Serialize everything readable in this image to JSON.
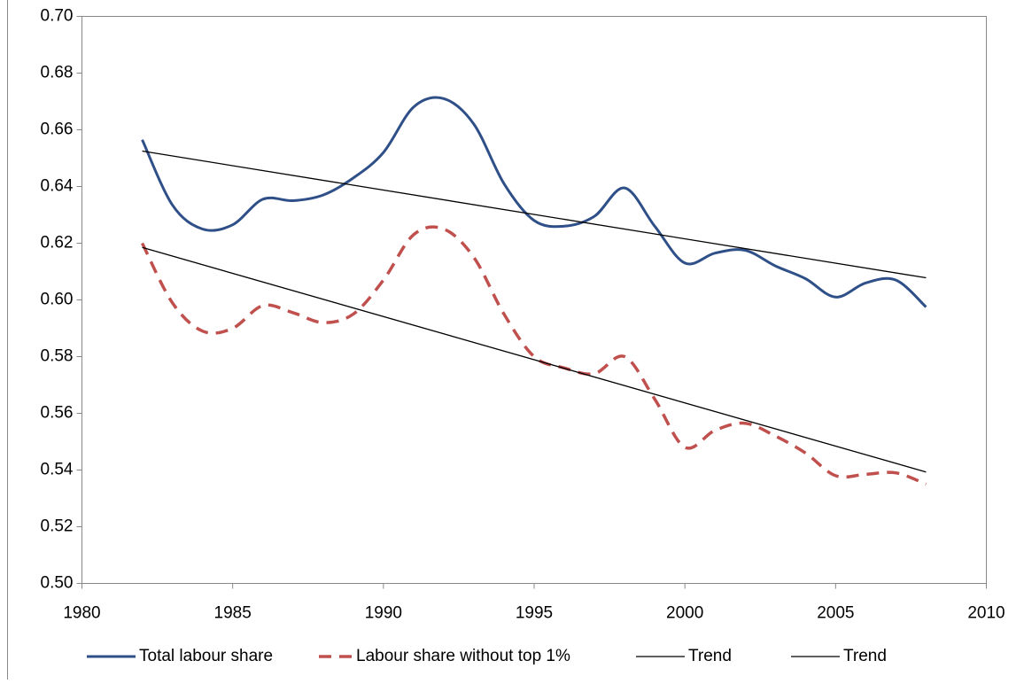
{
  "chart_data": {
    "type": "line",
    "x": [
      1982,
      1983,
      1984,
      1985,
      1986,
      1987,
      1988,
      1989,
      1990,
      1991,
      1992,
      1993,
      1994,
      1995,
      1996,
      1997,
      1998,
      1999,
      2000,
      2001,
      2002,
      2003,
      2004,
      2005,
      2006,
      2007,
      2008
    ],
    "series": [
      {
        "name": "Total labour share",
        "color": "#2e4f87",
        "dash": "solid",
        "width": 3,
        "values": [
          0.6565,
          0.6335,
          0.625,
          0.6265,
          0.6355,
          0.635,
          0.637,
          0.643,
          0.652,
          0.668,
          0.671,
          0.662,
          0.641,
          0.628,
          0.626,
          0.6295,
          0.6395,
          0.626,
          0.613,
          0.6165,
          0.6175,
          0.612,
          0.6075,
          0.601,
          0.606,
          0.607,
          0.5975
        ]
      },
      {
        "name": "Labour share without top 1%",
        "color": "#c0504d",
        "dash": "dashed",
        "width": 3.5,
        "values": [
          0.62,
          0.599,
          0.589,
          0.59,
          0.598,
          0.5955,
          0.592,
          0.595,
          0.607,
          0.623,
          0.625,
          0.615,
          0.595,
          0.58,
          0.576,
          0.574,
          0.58,
          0.565,
          0.548,
          0.554,
          0.5565,
          0.552,
          0.546,
          0.538,
          0.5385,
          0.539,
          0.535
        ]
      },
      {
        "name": "Trend",
        "color": "#000000",
        "dash": "solid",
        "width": 1.3,
        "x": [
          1982,
          2008
        ],
        "values": [
          0.6525,
          0.6078
        ]
      },
      {
        "name": "Trend",
        "color": "#000000",
        "dash": "solid",
        "width": 1.3,
        "x": [
          1982,
          2008
        ],
        "values": [
          0.6185,
          0.5393
        ]
      }
    ],
    "xlim": [
      1980,
      2010
    ],
    "xticks": [
      1980,
      1985,
      1990,
      1995,
      2000,
      2005,
      2010
    ],
    "ylim": [
      0.5,
      0.7
    ],
    "yticks": [
      {
        "value": 0.5,
        "label": "0.50"
      },
      {
        "value": 0.52,
        "label": "0.52"
      },
      {
        "value": 0.54,
        "label": "0.54"
      },
      {
        "value": 0.56,
        "label": "0.56"
      },
      {
        "value": 0.58,
        "label": "0.58"
      },
      {
        "value": 0.6,
        "label": "0.60"
      },
      {
        "value": 0.62,
        "label": "0.62"
      },
      {
        "value": 0.64,
        "label": "0.64"
      },
      {
        "value": 0.66,
        "label": "0.66"
      },
      {
        "value": 0.68,
        "label": "0.68"
      },
      {
        "value": 0.7,
        "label": "0.70"
      }
    ],
    "grid": false,
    "legend": "bottom"
  }
}
